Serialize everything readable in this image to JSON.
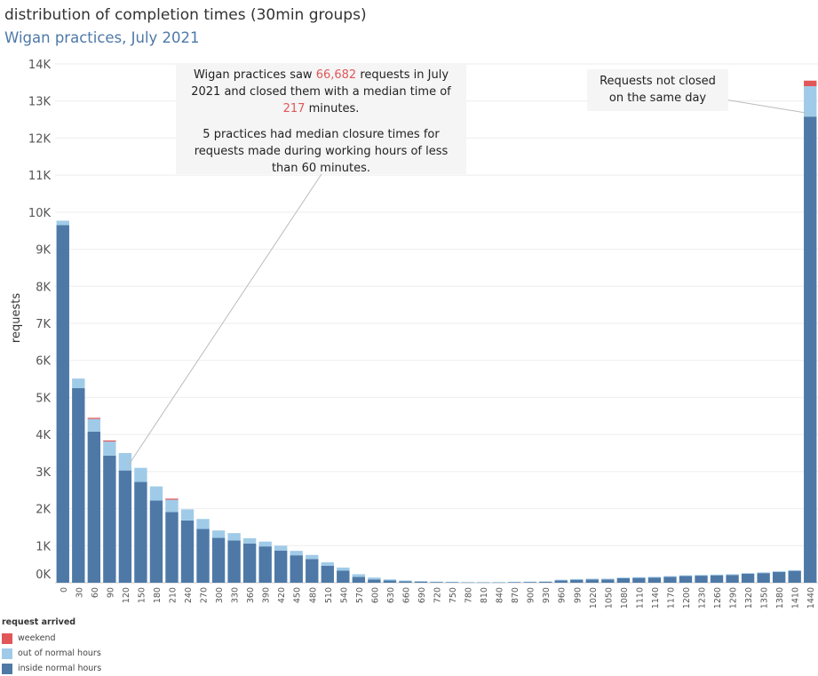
{
  "title": "distribution of completion times (30min groups)",
  "subtitle": "Wigan practices, July 2021",
  "annotation_main": {
    "line1_pre": "Wigan practices saw ",
    "line1_requests": "66,682",
    "line1_post": " requests in July",
    "line2": "2021 and closed them with a median time of",
    "line3_median": "217",
    "line3_post": " minutes.",
    "para2_line1": "5 practices had median closure times for",
    "para2_line2": "requests made during working hours of less",
    "para2_line3": "than 60 minutes."
  },
  "annotation_side": {
    "line1": "Requests not closed",
    "line2": "on the same day"
  },
  "legend": {
    "title": "request arrived",
    "items": [
      {
        "label": "weekend",
        "color": "#e15759"
      },
      {
        "label": "out of normal hours",
        "color": "#a0cbe8"
      },
      {
        "label": "inside normal hours",
        "color": "#4e79a7"
      }
    ]
  },
  "chart_data": {
    "type": "bar",
    "stacked": true,
    "ylabel": "requests",
    "xlabel": "",
    "ylim": [
      0,
      14000
    ],
    "yticks": [
      0,
      1000,
      2000,
      3000,
      4000,
      5000,
      6000,
      7000,
      8000,
      9000,
      10000,
      11000,
      12000,
      13000,
      14000
    ],
    "ytick_labels": [
      "0K",
      "1K",
      "2K",
      "3K",
      "4K",
      "5K",
      "6K",
      "7K",
      "8K",
      "9K",
      "10K",
      "11K",
      "12K",
      "13K",
      "14K"
    ],
    "categories": [
      "0",
      "30",
      "60",
      "90",
      "120",
      "150",
      "180",
      "210",
      "240",
      "270",
      "300",
      "330",
      "360",
      "390",
      "420",
      "450",
      "480",
      "510",
      "540",
      "570",
      "600",
      "630",
      "660",
      "690",
      "720",
      "750",
      "780",
      "810",
      "840",
      "870",
      "900",
      "930",
      "960",
      "990",
      "1020",
      "1050",
      "1080",
      "1110",
      "1140",
      "1170",
      "1200",
      "1230",
      "1260",
      "1290",
      "1320",
      "1350",
      "1380",
      "1410",
      "1440"
    ],
    "series": [
      {
        "name": "inside normal hours",
        "color": "#4e79a7",
        "values": [
          9650,
          5250,
          4080,
          3430,
          3030,
          2720,
          2220,
          1910,
          1680,
          1450,
          1210,
          1140,
          1060,
          980,
          870,
          740,
          640,
          460,
          330,
          160,
          90,
          60,
          40,
          30,
          20,
          15,
          10,
          10,
          10,
          15,
          20,
          25,
          60,
          80,
          90,
          90,
          120,
          130,
          140,
          160,
          180,
          190,
          200,
          210,
          240,
          260,
          290,
          320,
          12580
        ]
      },
      {
        "name": "out of normal hours",
        "color": "#a0cbe8",
        "values": [
          120,
          260,
          340,
          380,
          470,
          380,
          380,
          330,
          300,
          270,
          200,
          200,
          140,
          130,
          130,
          120,
          110,
          90,
          80,
          70,
          50,
          30,
          20,
          15,
          10,
          10,
          8,
          8,
          8,
          10,
          10,
          10,
          20,
          20,
          20,
          20,
          20,
          20,
          20,
          20,
          20,
          20,
          20,
          20,
          20,
          20,
          20,
          20,
          820
        ]
      },
      {
        "name": "weekend",
        "color": "#e15759",
        "values": [
          0,
          0,
          30,
          30,
          0,
          0,
          0,
          30,
          0,
          0,
          0,
          0,
          0,
          0,
          0,
          0,
          0,
          0,
          0,
          0,
          0,
          0,
          0,
          0,
          0,
          0,
          0,
          0,
          0,
          0,
          0,
          0,
          0,
          0,
          0,
          0,
          0,
          0,
          0,
          0,
          0,
          0,
          0,
          0,
          0,
          0,
          0,
          0,
          150
        ]
      }
    ],
    "grid": true,
    "legend_position": "bottom-left"
  }
}
